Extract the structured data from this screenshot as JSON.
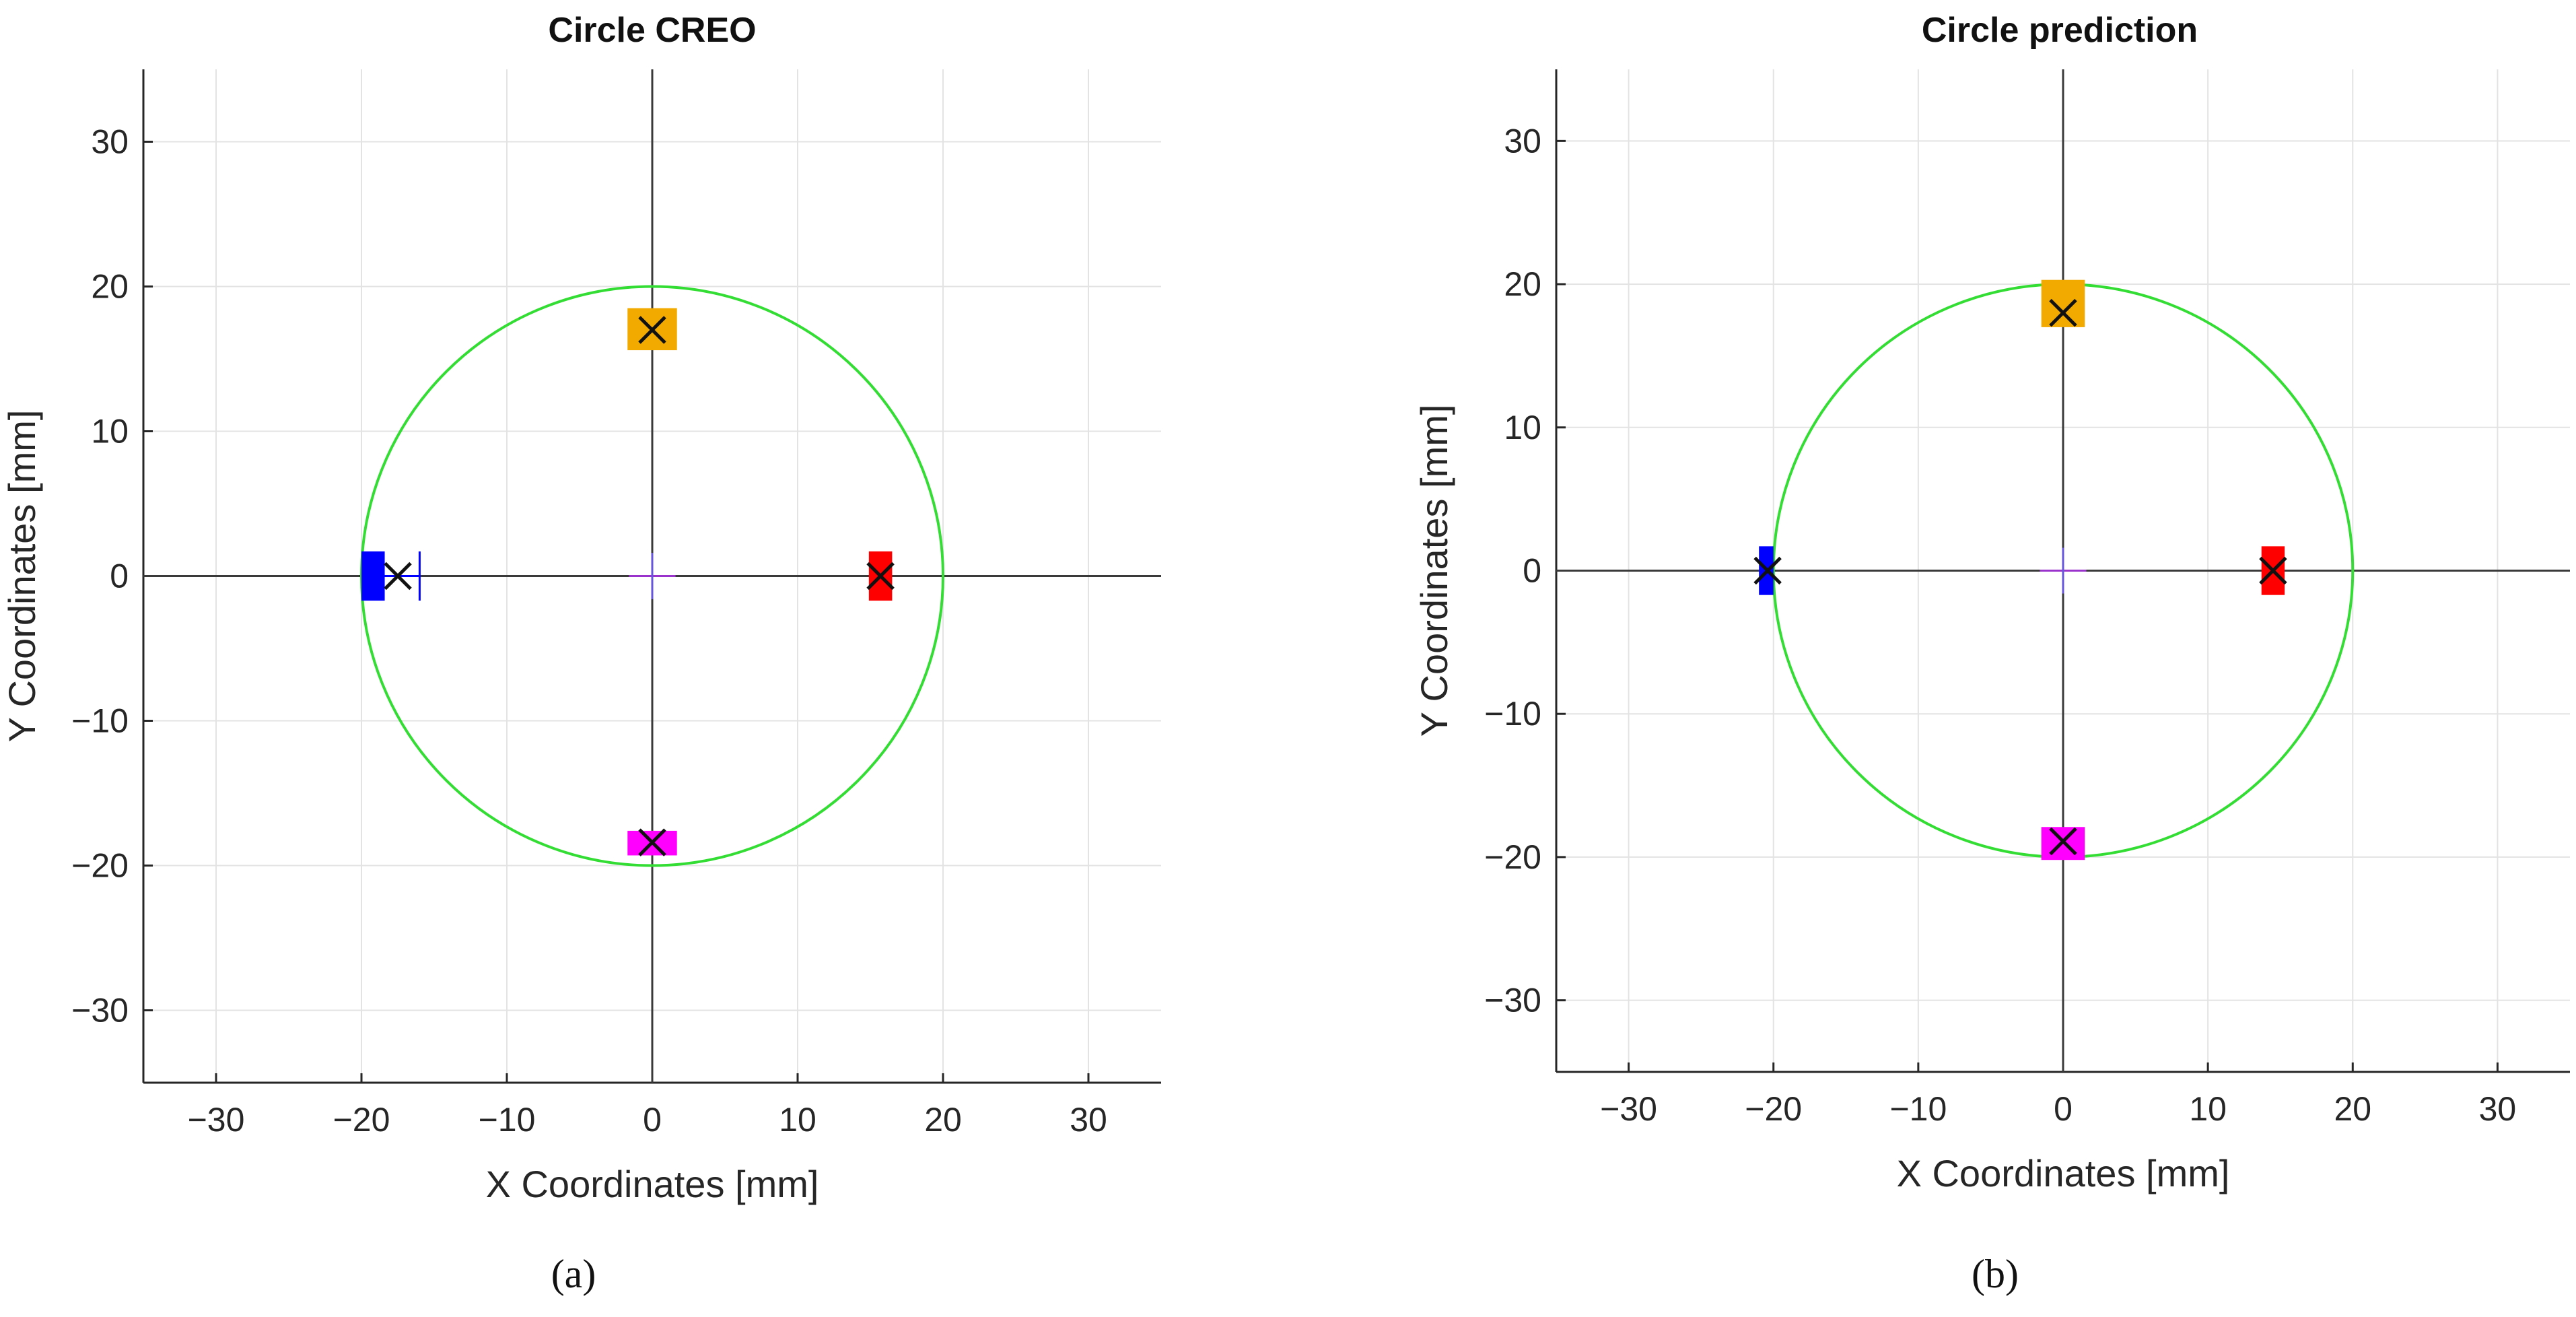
{
  "panels": [
    {
      "id": "a",
      "caption": "(a)",
      "title": "Circle CREO",
      "xlabel": "X Coordinates [mm]",
      "ylabel": "Y Coordinates [mm]",
      "xlim": [
        -35,
        35
      ],
      "ylim": [
        -35,
        35
      ],
      "xticks": [
        -30,
        -20,
        -10,
        0,
        10,
        20,
        30
      ],
      "yticks": [
        -30,
        -20,
        -10,
        0,
        10,
        20,
        30
      ],
      "circle": {
        "cx": 0,
        "cy": 0,
        "r": 20,
        "color": "#33dd33"
      },
      "markers": [
        {
          "name": "top",
          "x": 0,
          "y": 17,
          "box": [
            -1.7,
            15.6,
            1.7,
            18.5
          ],
          "color": "#f2a900",
          "cross": true
        },
        {
          "name": "bottom",
          "x": 0,
          "y": -18.4,
          "box": [
            -1.7,
            -19.3,
            1.7,
            -17.6
          ],
          "color": "#ff00ff",
          "cross": true
        },
        {
          "name": "left",
          "x": -17.5,
          "y": 0,
          "box": [
            -20,
            -1.7,
            -18.4,
            1.7
          ],
          "color": "#0000ff",
          "cross": true,
          "whisker": [
            -20,
            -16
          ]
        },
        {
          "name": "right",
          "x": 15.7,
          "y": 0,
          "box": [
            14.9,
            -1.7,
            16.5,
            1.7
          ],
          "color": "#ff0000",
          "cross": true
        }
      ]
    },
    {
      "id": "b",
      "caption": "(b)",
      "title": "Circle prediction",
      "xlabel": "X Coordinates [mm]",
      "ylabel": "Y Coordinates [mm]",
      "xlim": [
        -35,
        35
      ],
      "ylim": [
        -35,
        35
      ],
      "xticks": [
        -30,
        -20,
        -10,
        0,
        10,
        20,
        30
      ],
      "yticks": [
        -30,
        -20,
        -10,
        0,
        10,
        20,
        30
      ],
      "circle": {
        "cx": 0,
        "cy": 0,
        "r": 20,
        "color": "#33dd33"
      },
      "markers": [
        {
          "name": "top",
          "x": 0,
          "y": 18,
          "box": [
            -1.5,
            17,
            1.5,
            20.3
          ],
          "color": "#f2a900",
          "cross": true
        },
        {
          "name": "bottom",
          "x": 0,
          "y": -18.9,
          "box": [
            -1.5,
            -20.2,
            1.5,
            -17.9
          ],
          "color": "#ff00ff",
          "cross": true
        },
        {
          "name": "left",
          "x": -20.4,
          "y": 0,
          "box": [
            -21,
            -1.7,
            -20,
            1.7
          ],
          "color": "#0000ff",
          "cross": true
        },
        {
          "name": "right",
          "x": 14.5,
          "y": 0,
          "box": [
            13.7,
            -1.7,
            15.3,
            1.7
          ],
          "color": "#ff0000",
          "cross": true
        }
      ]
    }
  ],
  "chart_data": [
    {
      "type": "scatter",
      "title": "Circle CREO",
      "xlabel": "X Coordinates [mm]",
      "ylabel": "Y Coordinates [mm]",
      "xlim": [
        -35,
        35
      ],
      "ylim": [
        -35,
        35
      ],
      "grid": true,
      "reference_circle": {
        "center": [
          0,
          0
        ],
        "radius": 20
      },
      "points": [
        {
          "label": "top",
          "x": 0,
          "y": 17
        },
        {
          "label": "bottom",
          "x": 0,
          "y": -18.4
        },
        {
          "label": "left",
          "x": -17.5,
          "y": 0
        },
        {
          "label": "right",
          "x": 15.7,
          "y": 0
        }
      ]
    },
    {
      "type": "scatter",
      "title": "Circle prediction",
      "xlabel": "X Coordinates [mm]",
      "ylabel": "Y Coordinates [mm]",
      "xlim": [
        -35,
        35
      ],
      "ylim": [
        -35,
        35
      ],
      "grid": true,
      "reference_circle": {
        "center": [
          0,
          0
        ],
        "radius": 20
      },
      "points": [
        {
          "label": "top",
          "x": 0,
          "y": 18
        },
        {
          "label": "bottom",
          "x": 0,
          "y": -18.9
        },
        {
          "label": "left",
          "x": -20.4,
          "y": 0
        },
        {
          "label": "right",
          "x": 14.5,
          "y": 0
        }
      ]
    }
  ]
}
